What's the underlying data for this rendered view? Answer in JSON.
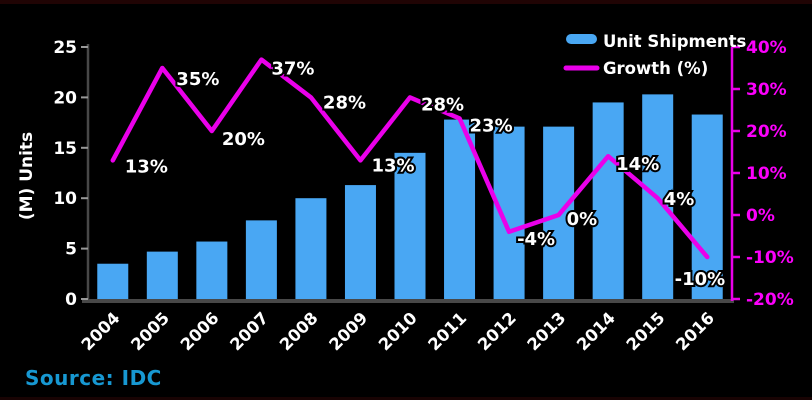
{
  "chart_data": {
    "type": "combo-bar-line",
    "title": "",
    "categories": [
      "2004",
      "2005",
      "2006",
      "2007",
      "2008",
      "2009",
      "2010",
      "2011",
      "2012",
      "2013",
      "2014",
      "2015",
      "2016"
    ],
    "series": [
      {
        "name": "Unit Shipments",
        "type": "bar",
        "axis": "left",
        "values": [
          3.5,
          4.7,
          5.7,
          7.8,
          10.0,
          11.3,
          14.5,
          17.8,
          17.1,
          17.1,
          19.5,
          20.3,
          18.3
        ]
      },
      {
        "name": "Growth (%)",
        "type": "line",
        "axis": "right",
        "values": [
          13,
          35,
          20,
          37,
          28,
          13,
          28,
          23,
          -4,
          0,
          14,
          4,
          -10
        ],
        "point_labels": [
          "13%",
          "35%",
          "20%",
          "37%",
          "28%",
          "13%",
          "28%",
          "23%",
          "-4%",
          "0%",
          "14%",
          "4%",
          "-10%"
        ]
      }
    ],
    "left_axis": {
      "title": "(M) Units",
      "range": [
        0,
        25
      ],
      "ticks": [
        {
          "label": "0",
          "value": 0
        },
        {
          "label": "5",
          "value": 5
        },
        {
          "label": "10",
          "value": 10
        },
        {
          "label": "15",
          "value": 15
        },
        {
          "label": "20",
          "value": 20
        },
        {
          "label": "25",
          "value": 25
        }
      ]
    },
    "right_axis": {
      "range": [
        -20,
        40
      ],
      "ticks": [
        {
          "label": "40%",
          "value": 40
        },
        {
          "label": "30%",
          "value": 30
        },
        {
          "label": "20%",
          "value": 20
        },
        {
          "label": "10%",
          "value": 10
        },
        {
          "label": "0%",
          "value": 0
        },
        {
          "label": "-10%",
          "value": -10
        },
        {
          "label": "-20%",
          "value": -20
        }
      ]
    },
    "legend": {
      "position": "top-right",
      "items": [
        {
          "label": "Unit Shipments",
          "swatch": "bar"
        },
        {
          "label": "Growth (%)",
          "swatch": "line"
        }
      ]
    },
    "grid": false
  },
  "source": {
    "label": "Source: IDC"
  },
  "colors": {
    "background": "#000000",
    "bar": "#49a7f3",
    "line": "#ea00ea",
    "right_axis_text": "#fb00fb",
    "axis": "#484848",
    "tick": "#999999",
    "text": "#ffffff",
    "source_text": "#1798d2",
    "frame_strip": "#200404"
  }
}
